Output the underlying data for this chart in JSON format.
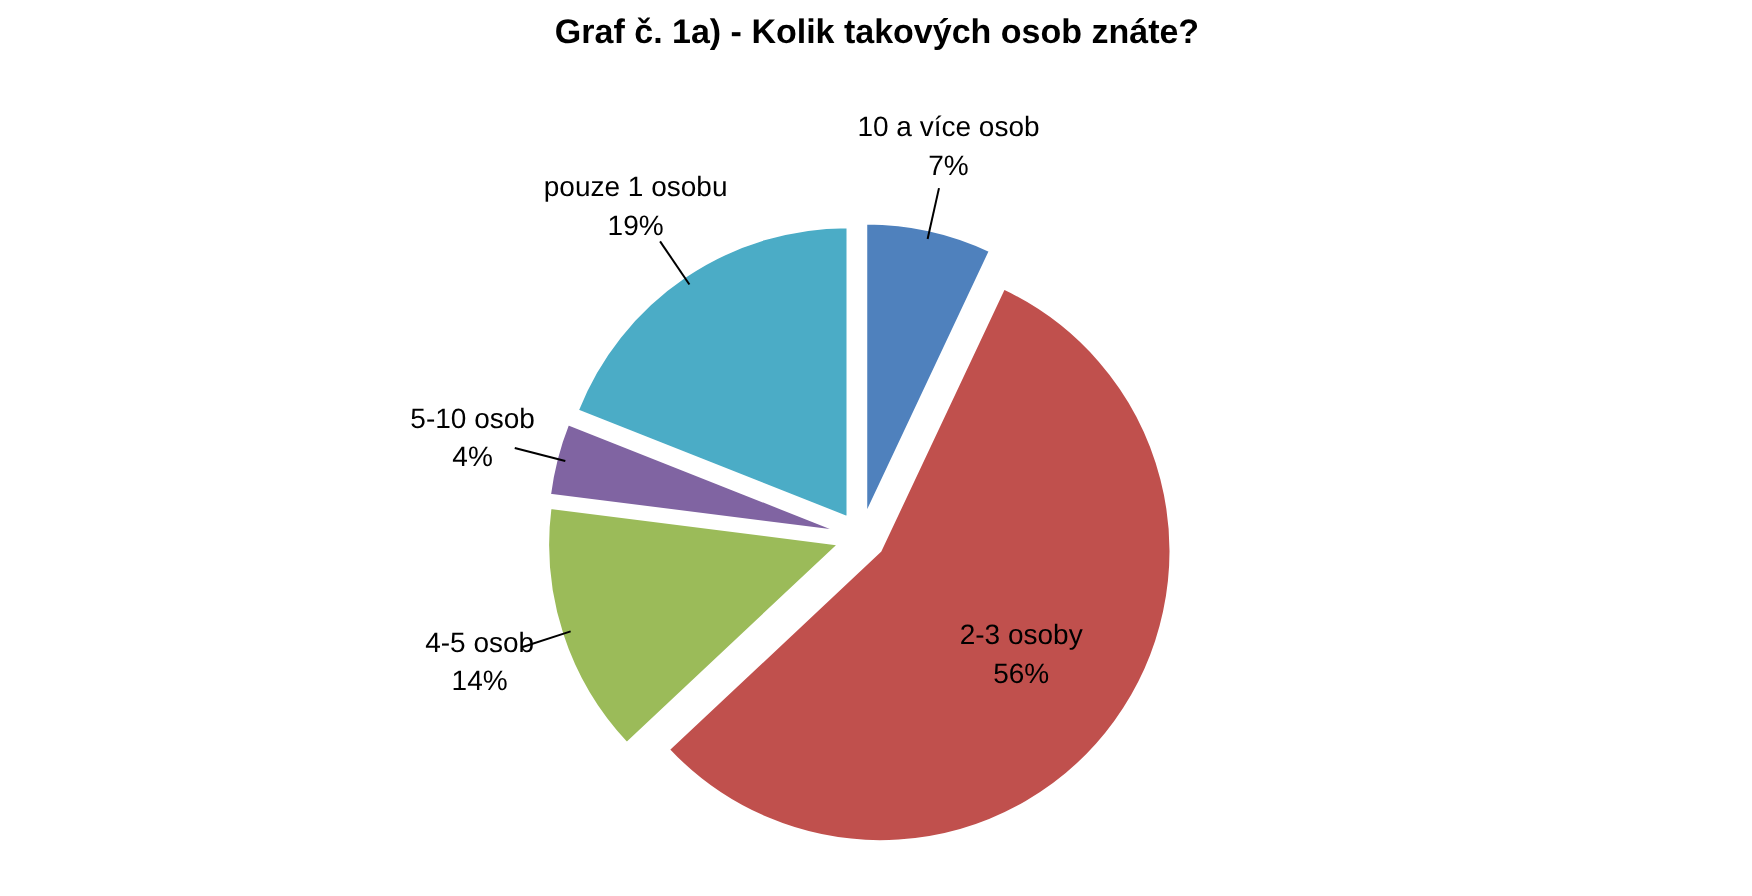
{
  "chart_data": {
    "type": "pie",
    "title": "Graf č. 1a) - Kolik takových osob znáte?",
    "categories": [
      "10 a více osob",
      "2-3 osoby",
      "4-5 osob",
      "5-10 osob",
      "pouze 1 osobu"
    ],
    "values": [
      7,
      56,
      14,
      4,
      19
    ],
    "value_labels": [
      "7%",
      "56%",
      "14%",
      "4%",
      "19%"
    ],
    "colors": [
      "#4f81bd",
      "#c0504d",
      "#9bbb59",
      "#8064a2",
      "#4bacc6"
    ]
  }
}
